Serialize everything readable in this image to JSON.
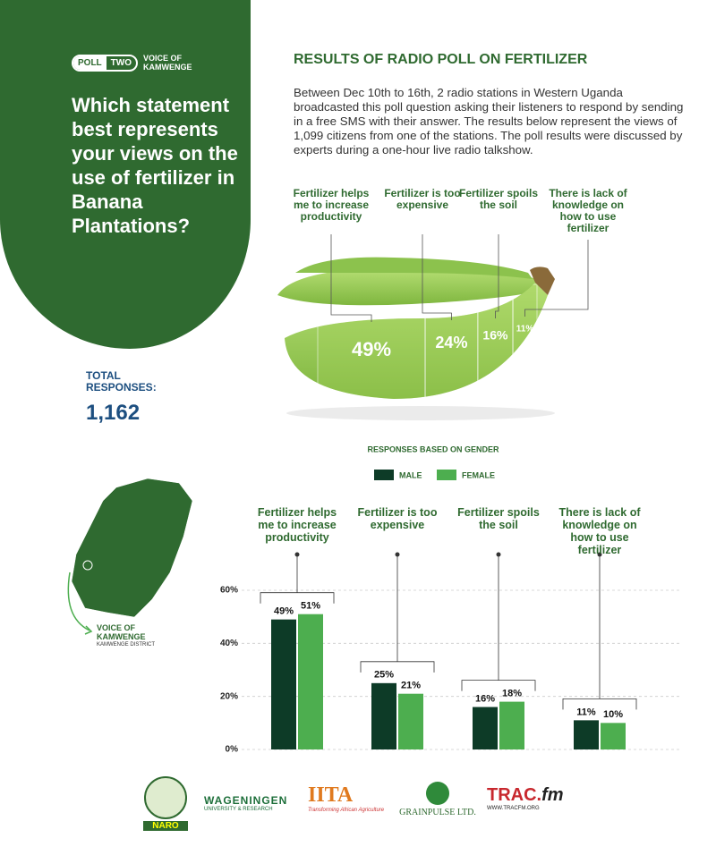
{
  "poll_badge": {
    "poll": "POLL",
    "number": "TWO",
    "station": [
      "VOICE OF",
      "KAMWENGE"
    ]
  },
  "question": "Which statement best represents your views on the use of fertilizer in Banana Plantations?",
  "total_responses": {
    "label": "TOTAL RESPONSES:",
    "value": "1,162"
  },
  "results": {
    "title": "RESULTS OF RADIO POLL ON FERTILIZER",
    "description": "Between Dec 10th to 16th, 2 radio stations in Western Uganda broadcasted this poll question asking their listeners to respond by sending in a free SMS with their answer. The results below represent the views of 1,099 citizens from one of the stations. The poll results were discussed by experts during a one-hour live radio talkshow."
  },
  "map": {
    "station": "VOICE OF KAMWENGE",
    "district": "KAMWENGE DISTRICT"
  },
  "logos": {
    "naro": "NARO",
    "wageningen": [
      "WAGENINGEN",
      "UNIVERSITY & RESEARCH"
    ],
    "iita": [
      "IITA",
      "Transforming African Agriculture"
    ],
    "grainpulse": "GRAINPULSE LTD.",
    "tracfm": [
      "TRAC.",
      "fm",
      "WWW.TRACFM.ORG"
    ]
  },
  "chart_data": [
    {
      "type": "banana",
      "categories": [
        "Fertilizer helps me to increase productivity",
        "Fertilizer is too expensive",
        "Fertilizer spoils the soil",
        "There is lack of knowledge on how to use fertilizer"
      ],
      "values": [
        49,
        24,
        16,
        11
      ],
      "value_labels": [
        "49%",
        "24%",
        "16%",
        "11%"
      ],
      "color": "#a3d25c"
    },
    {
      "type": "bar",
      "title": "RESPONSES BASED ON GENDER",
      "categories": [
        "Fertilizer helps me to increase productivity",
        "Fertilizer is too expensive",
        "Fertilizer spoils the soil",
        "There is lack of knowledge on how to use fertilizer"
      ],
      "series": [
        {
          "name": "MALE",
          "color": "#0d3b27",
          "values": [
            49,
            25,
            16,
            11
          ],
          "value_labels": [
            "49%",
            "25%",
            "16%",
            "11%"
          ]
        },
        {
          "name": "FEMALE",
          "color": "#4dae4f",
          "values": [
            51,
            21,
            18,
            10
          ],
          "value_labels": [
            "51%",
            "21%",
            "18%",
            "10%"
          ]
        }
      ],
      "ylim": [
        0,
        60
      ],
      "yticks": [
        {
          "value": 0,
          "label": "0%"
        },
        {
          "value": 20,
          "label": "20%"
        },
        {
          "value": 40,
          "label": "40%"
        },
        {
          "value": 60,
          "label": "60%"
        }
      ],
      "grid": true
    }
  ]
}
